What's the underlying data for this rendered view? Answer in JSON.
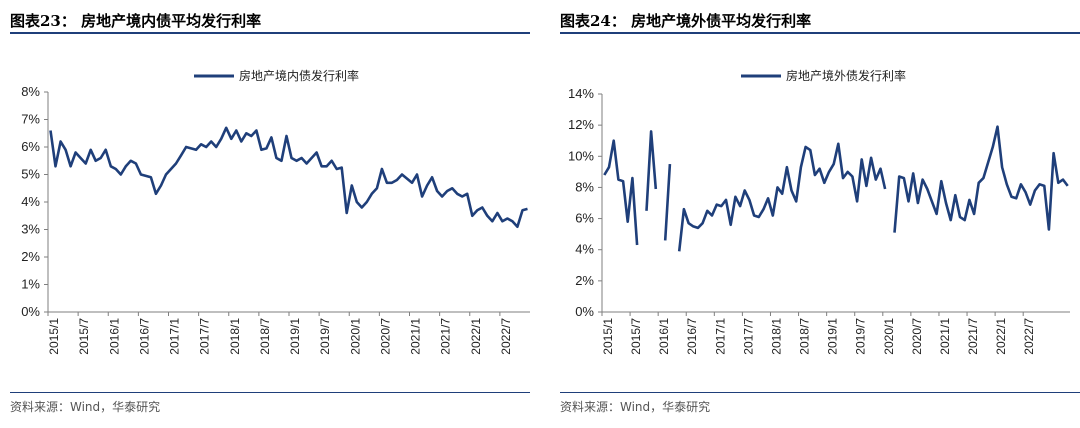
{
  "left": {
    "figure_title": "图表23：  房地产境内债平均发行利率",
    "source": "资料来源：Wind，华泰研究"
  },
  "right": {
    "figure_title": "图表24：  房地产境外债平均发行利率",
    "source": "资料来源：Wind，华泰研究"
  },
  "colors": {
    "line": "#1f3f7a",
    "axis": "#7f7f7f",
    "rule": "#1f3f7a"
  },
  "chart_data": [
    {
      "type": "line",
      "title": "",
      "xlabel": "",
      "ylabel": "",
      "ylim": [
        0,
        8
      ],
      "y_ticks": [
        "0%",
        "1%",
        "2%",
        "3%",
        "4%",
        "5%",
        "6%",
        "7%",
        "8%"
      ],
      "x_ticks": [
        "2015/1",
        "2015/7",
        "2016/1",
        "2016/7",
        "2017/1",
        "2017/7",
        "2018/1",
        "2018/7",
        "2019/1",
        "2019/7",
        "2020/1",
        "2020/7",
        "2021/1",
        "2021/7",
        "2022/1",
        "2022/7"
      ],
      "legend_position": "top-center",
      "grid": false,
      "start_month": "2015/1",
      "series": [
        {
          "name": "房地产境内债发行利率",
          "values": [
            6.6,
            5.3,
            6.2,
            5.9,
            5.3,
            5.8,
            5.6,
            5.4,
            5.9,
            5.5,
            5.6,
            5.9,
            5.3,
            5.2,
            5.0,
            5.3,
            5.5,
            5.4,
            5.0,
            4.95,
            4.9,
            4.3,
            4.6,
            5.0,
            5.2,
            5.4,
            5.7,
            6.0,
            5.95,
            5.9,
            6.1,
            6.0,
            6.2,
            6.0,
            6.3,
            6.7,
            6.3,
            6.6,
            6.2,
            6.5,
            6.4,
            6.6,
            5.9,
            5.95,
            6.35,
            5.6,
            5.5,
            6.4,
            5.6,
            5.5,
            5.6,
            5.4,
            5.6,
            5.8,
            5.3,
            5.3,
            5.5,
            5.2,
            5.25,
            3.6,
            4.6,
            4.0,
            3.8,
            4.0,
            4.3,
            4.5,
            5.2,
            4.7,
            4.7,
            4.8,
            5.0,
            4.85,
            4.7,
            5.0,
            4.2,
            4.6,
            4.9,
            4.4,
            4.2,
            4.4,
            4.5,
            4.3,
            4.2,
            4.3,
            3.5,
            3.7,
            3.8,
            3.5,
            3.3,
            3.6,
            3.3,
            3.4,
            3.3,
            3.1,
            3.7,
            3.75
          ]
        }
      ]
    },
    {
      "type": "line",
      "title": "",
      "xlabel": "",
      "ylabel": "",
      "ylim": [
        0,
        14
      ],
      "y_ticks": [
        "0%",
        "2%",
        "4%",
        "6%",
        "8%",
        "10%",
        "12%",
        "14%"
      ],
      "x_ticks": [
        "2015/1",
        "2015/7",
        "2016/1",
        "2016/7",
        "2017/1",
        "2017/7",
        "2018/1",
        "2018/7",
        "2019/1",
        "2019/7",
        "2020/1",
        "2020/7",
        "2021/1",
        "2021/7",
        "2022/1",
        "2022/7"
      ],
      "legend_position": "top-center",
      "grid": false,
      "start_month": "2015/1",
      "series": [
        {
          "name": "房地产境外债发行利率",
          "values": [
            8.8,
            9.3,
            11.0,
            8.5,
            8.4,
            5.8,
            8.6,
            4.3,
            null,
            6.5,
            11.6,
            7.9,
            null,
            4.6,
            9.5,
            null,
            3.9,
            6.6,
            5.7,
            5.5,
            5.4,
            5.7,
            6.5,
            6.2,
            6.9,
            6.8,
            7.2,
            5.6,
            7.4,
            6.8,
            7.8,
            7.2,
            6.2,
            6.1,
            6.6,
            7.3,
            6.2,
            8.0,
            7.6,
            9.3,
            7.8,
            7.1,
            9.3,
            10.6,
            10.4,
            8.8,
            9.2,
            8.3,
            9.0,
            9.5,
            10.8,
            8.6,
            9.0,
            8.7,
            7.1,
            9.8,
            8.1,
            9.9,
            8.5,
            9.2,
            7.9,
            null,
            5.1,
            8.7,
            8.6,
            7.1,
            8.9,
            7.0,
            8.5,
            7.9,
            7.1,
            6.3,
            8.4,
            7.0,
            5.9,
            7.5,
            6.1,
            5.9,
            7.2,
            6.3,
            8.3,
            8.6,
            9.6,
            10.6,
            11.9,
            9.3,
            8.2,
            7.4,
            7.3,
            8.2,
            7.7,
            6.9,
            7.8,
            8.2,
            8.1,
            5.3,
            10.2,
            8.3,
            8.5,
            8.1
          ]
        }
      ]
    }
  ]
}
